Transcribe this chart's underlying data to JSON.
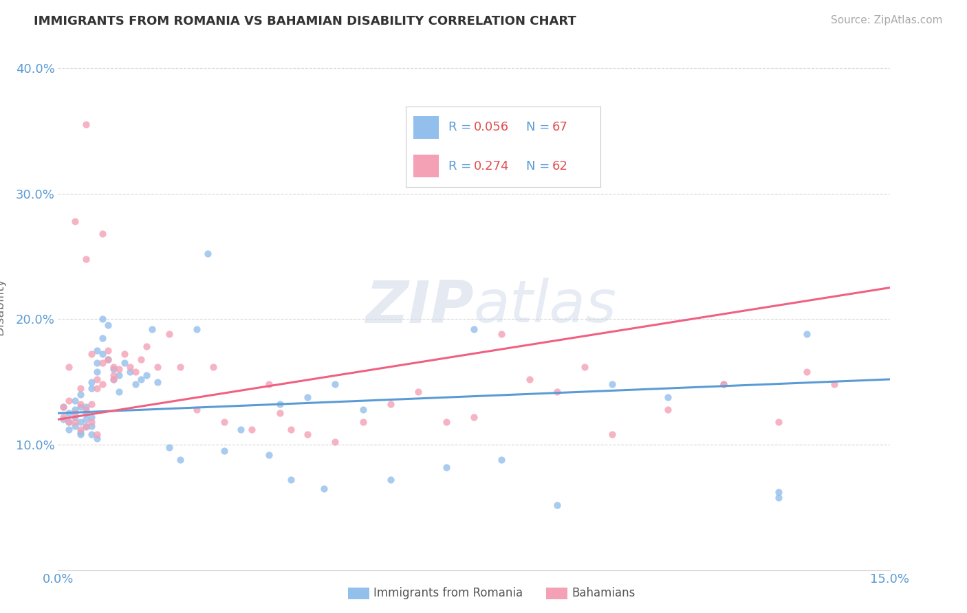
{
  "title": "IMMIGRANTS FROM ROMANIA VS BAHAMIAN DISABILITY CORRELATION CHART",
  "source": "Source: ZipAtlas.com",
  "ylabel": "Disability",
  "xlim": [
    0.0,
    0.15
  ],
  "ylim": [
    0.0,
    0.42
  ],
  "yticks": [
    0.1,
    0.2,
    0.3,
    0.4
  ],
  "xticks": [
    0.0,
    0.15
  ],
  "color_blue": "#92BFEC",
  "color_pink": "#F4A0B5",
  "line_blue": "#5B9BD5",
  "line_pink": "#F06080",
  "background_color": "#FFFFFF",
  "romania_x": [
    0.001,
    0.001,
    0.002,
    0.002,
    0.002,
    0.003,
    0.003,
    0.003,
    0.003,
    0.004,
    0.004,
    0.004,
    0.004,
    0.004,
    0.005,
    0.005,
    0.005,
    0.005,
    0.006,
    0.006,
    0.006,
    0.006,
    0.006,
    0.007,
    0.007,
    0.007,
    0.007,
    0.008,
    0.008,
    0.008,
    0.009,
    0.009,
    0.01,
    0.01,
    0.011,
    0.011,
    0.012,
    0.013,
    0.014,
    0.015,
    0.016,
    0.017,
    0.018,
    0.02,
    0.022,
    0.025,
    0.027,
    0.03,
    0.033,
    0.04,
    0.045,
    0.05,
    0.055,
    0.06,
    0.07,
    0.075,
    0.08,
    0.09,
    0.1,
    0.11,
    0.12,
    0.13,
    0.135,
    0.038,
    0.042,
    0.048,
    0.13
  ],
  "romania_y": [
    0.13,
    0.12,
    0.125,
    0.118,
    0.112,
    0.115,
    0.122,
    0.128,
    0.135,
    0.13,
    0.118,
    0.11,
    0.14,
    0.108,
    0.125,
    0.12,
    0.13,
    0.114,
    0.15,
    0.145,
    0.122,
    0.115,
    0.108,
    0.175,
    0.158,
    0.165,
    0.105,
    0.172,
    0.2,
    0.185,
    0.195,
    0.168,
    0.152,
    0.16,
    0.155,
    0.142,
    0.165,
    0.158,
    0.148,
    0.152,
    0.155,
    0.192,
    0.15,
    0.098,
    0.088,
    0.192,
    0.252,
    0.095,
    0.112,
    0.132,
    0.138,
    0.148,
    0.128,
    0.072,
    0.082,
    0.192,
    0.088,
    0.052,
    0.148,
    0.138,
    0.148,
    0.058,
    0.188,
    0.092,
    0.072,
    0.065,
    0.062
  ],
  "bahamian_x": [
    0.001,
    0.001,
    0.002,
    0.002,
    0.003,
    0.003,
    0.004,
    0.004,
    0.004,
    0.005,
    0.005,
    0.005,
    0.006,
    0.006,
    0.007,
    0.007,
    0.007,
    0.008,
    0.008,
    0.009,
    0.009,
    0.01,
    0.01,
    0.011,
    0.012,
    0.013,
    0.014,
    0.015,
    0.016,
    0.018,
    0.02,
    0.022,
    0.025,
    0.028,
    0.03,
    0.035,
    0.038,
    0.04,
    0.042,
    0.045,
    0.05,
    0.055,
    0.06,
    0.065,
    0.07,
    0.075,
    0.08,
    0.085,
    0.09,
    0.095,
    0.1,
    0.11,
    0.12,
    0.13,
    0.135,
    0.14,
    0.002,
    0.003,
    0.005,
    0.006,
    0.008,
    0.01
  ],
  "bahamian_y": [
    0.13,
    0.122,
    0.118,
    0.135,
    0.125,
    0.118,
    0.132,
    0.112,
    0.145,
    0.128,
    0.115,
    0.355,
    0.118,
    0.132,
    0.145,
    0.152,
    0.108,
    0.165,
    0.148,
    0.168,
    0.175,
    0.162,
    0.152,
    0.16,
    0.172,
    0.162,
    0.158,
    0.168,
    0.178,
    0.162,
    0.188,
    0.162,
    0.128,
    0.162,
    0.118,
    0.112,
    0.148,
    0.125,
    0.112,
    0.108,
    0.102,
    0.118,
    0.132,
    0.142,
    0.118,
    0.122,
    0.188,
    0.152,
    0.142,
    0.162,
    0.108,
    0.128,
    0.148,
    0.118,
    0.158,
    0.148,
    0.162,
    0.278,
    0.248,
    0.172,
    0.268,
    0.155
  ]
}
